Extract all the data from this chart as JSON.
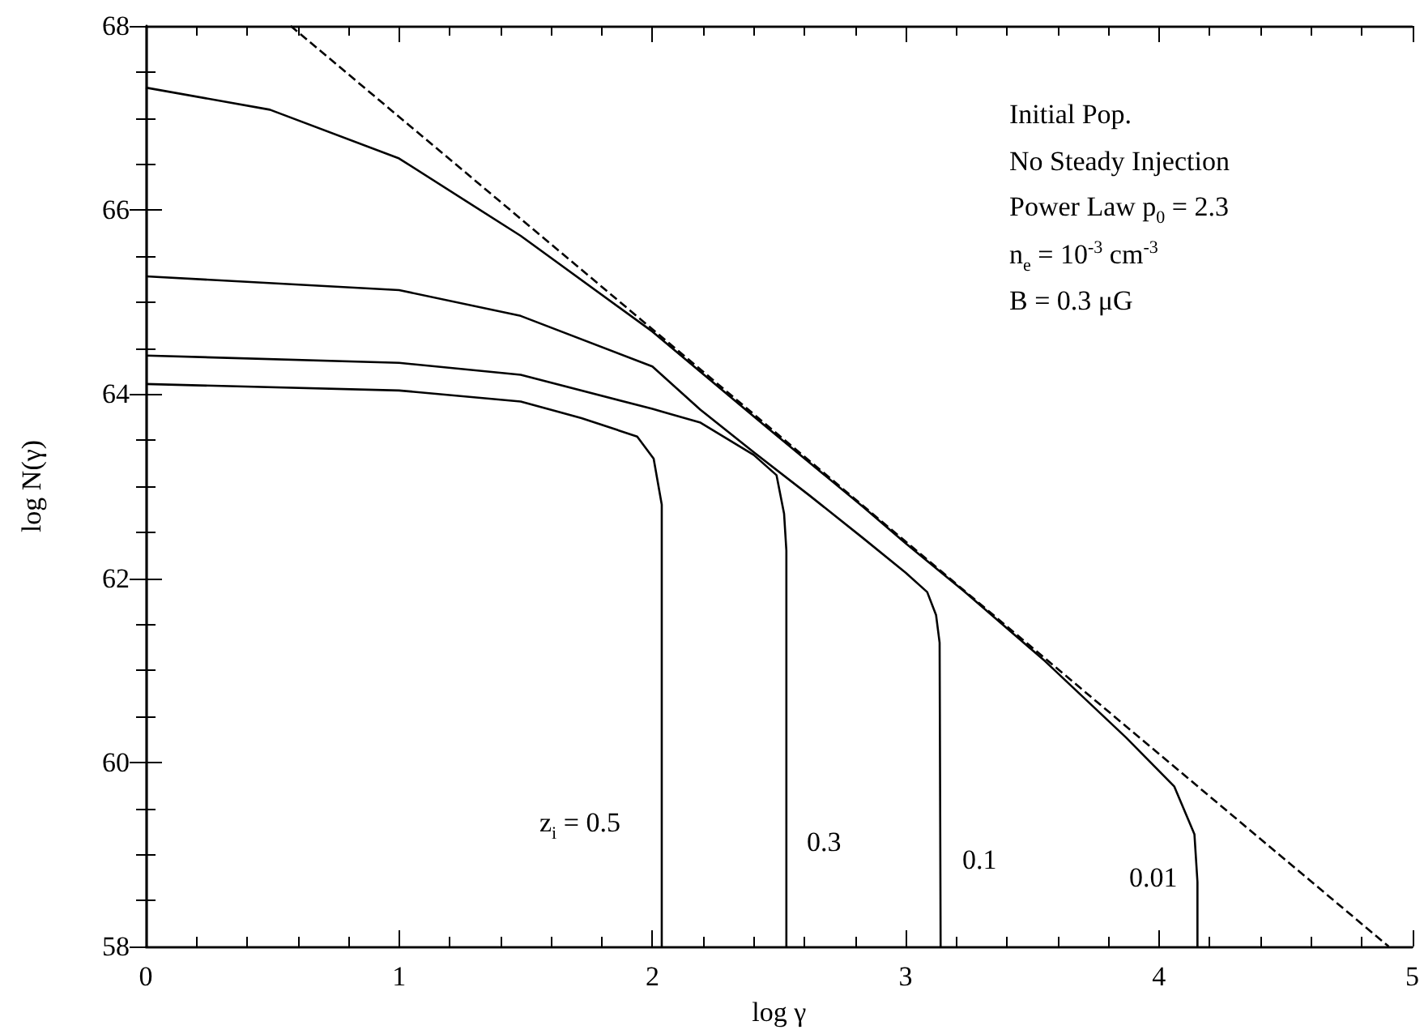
{
  "chart_data": {
    "type": "line",
    "xlabel": "log γ",
    "ylabel": "log N(γ)",
    "xlim": [
      0,
      5
    ],
    "ylim": [
      58,
      68
    ],
    "xticks": [
      0,
      {
        "value": 0.2,
        "label": null
      },
      {
        "value": 0.4,
        "label": null
      },
      {
        "value": 0.6,
        "label": null
      },
      {
        "value": 0.8,
        "label": null
      },
      1,
      {
        "value": 1.2,
        "label": null
      },
      {
        "value": 1.4,
        "label": null
      },
      {
        "value": 1.6,
        "label": null
      },
      {
        "value": 1.8,
        "label": null
      },
      2,
      {
        "value": 2.2,
        "label": null
      },
      {
        "value": 2.4,
        "label": null
      },
      {
        "value": 2.6,
        "label": null
      },
      {
        "value": 2.8,
        "label": null
      },
      3,
      {
        "value": 3.2,
        "label": null
      },
      {
        "value": 3.4,
        "label": null
      },
      {
        "value": 3.6,
        "label": null
      },
      {
        "value": 3.8,
        "label": null
      },
      4,
      {
        "value": 4.2,
        "label": null
      },
      {
        "value": 4.4,
        "label": null
      },
      {
        "value": 4.6,
        "label": null
      },
      {
        "value": 4.8,
        "label": null
      },
      5
    ],
    "yticks": [
      58,
      {
        "value": 58.5,
        "label": null
      },
      {
        "value": 59,
        "label": null
      },
      {
        "value": 59.5,
        "label": null
      },
      60,
      {
        "value": 60.5,
        "label": null
      },
      {
        "value": 61,
        "label": null
      },
      {
        "value": 61.5,
        "label": null
      },
      62,
      {
        "value": 62.5,
        "label": null
      },
      {
        "value": 63,
        "label": null
      },
      {
        "value": 63.5,
        "label": null
      },
      64,
      {
        "value": 64.5,
        "label": null
      },
      {
        "value": 65,
        "label": null
      },
      {
        "value": 65.5,
        "label": null
      },
      66,
      {
        "value": 66.5,
        "label": null
      },
      {
        "value": 67,
        "label": null
      },
      {
        "value": 67.5,
        "label": null
      },
      68
    ],
    "series": [
      {
        "color": "#000000",
        "line_style": "solid",
        "x": [
          0,
          1,
          1.48,
          1.72,
          1.94,
          2.005,
          2.037,
          2.037
        ],
        "values": [
          64.11,
          64.04,
          63.92,
          63.74,
          63.54,
          63.3,
          62.8,
          58
        ]
      },
      {
        "color": "#000000",
        "line_style": "solid",
        "x": [
          0,
          1,
          1.48,
          2.0,
          2.19,
          2.4,
          2.49,
          2.52,
          2.529,
          2.529
        ],
        "values": [
          64.42,
          64.34,
          64.21,
          63.84,
          63.69,
          63.34,
          63.12,
          62.7,
          62.3,
          58
        ]
      },
      {
        "color": "#000000",
        "line_style": "solid",
        "x": [
          0,
          1,
          1.48,
          2.0,
          2.19,
          2.4,
          2.62,
          2.83,
          3.0,
          3.085,
          3.12,
          3.134,
          3.138
        ],
        "values": [
          65.28,
          65.13,
          64.85,
          64.3,
          63.83,
          63.37,
          62.9,
          62.44,
          62.06,
          61.85,
          61.6,
          61.3,
          58
        ]
      },
      {
        "color": "#000000",
        "line_style": "solid",
        "x": [
          0,
          0.49,
          1,
          1.48,
          2.0,
          2.46,
          2.83,
          3.0,
          3.23,
          3.55,
          3.87,
          4.06,
          4.14,
          4.152,
          4.152
        ],
        "values": [
          67.33,
          67.09,
          66.56,
          65.72,
          64.68,
          63.62,
          62.78,
          62.38,
          61.86,
          61.1,
          60.27,
          59.74,
          59.22,
          58.7,
          58
        ]
      },
      {
        "color": "#000000",
        "line_style": "dashed",
        "x": [
          0.572,
          4.907
        ],
        "values": [
          68,
          58
        ]
      }
    ],
    "annotations": [
      "Initial Pop.",
      "No Steady Injection",
      "Power Law p$_{0}$ = 2.3",
      "n$_{e}$ = 10$^{-3}$ cm$^{-3}$",
      "B = 0.3 μG",
      "z$_{i}$ = 0.5",
      "0.3",
      "0.1",
      "0.01"
    ]
  }
}
